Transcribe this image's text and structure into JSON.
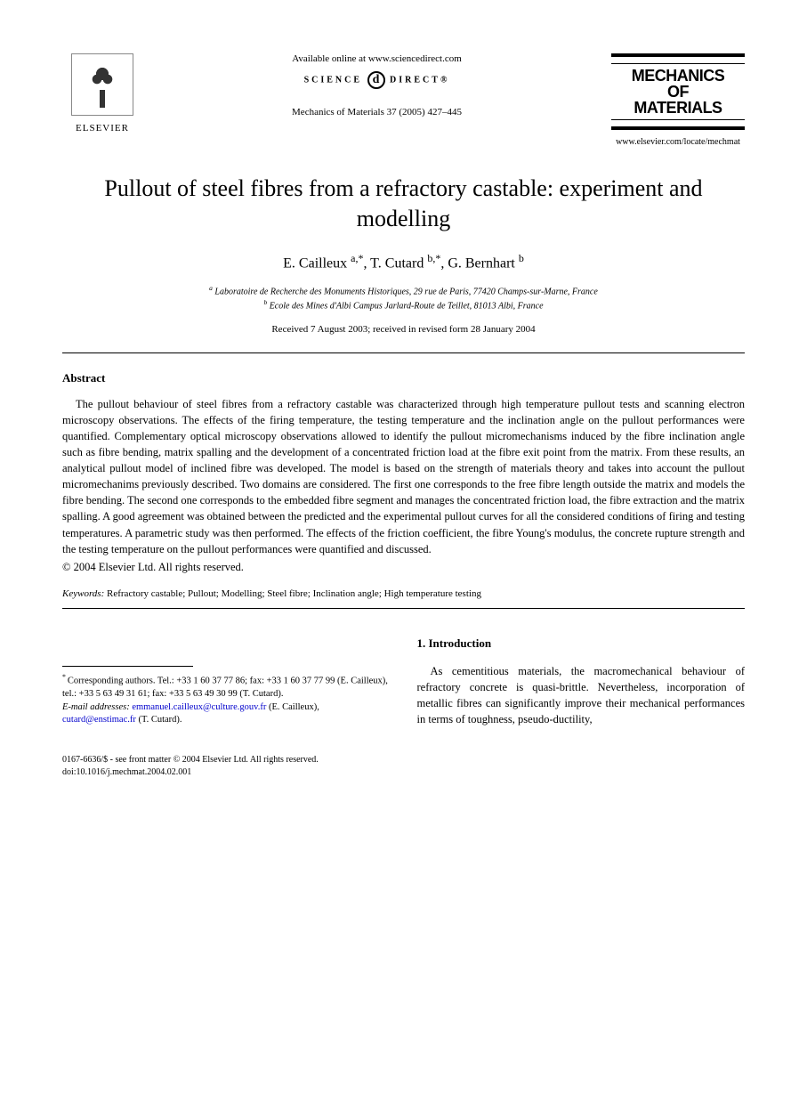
{
  "header": {
    "elsevier_label": "ELSEVIER",
    "available_online": "Available online at www.sciencedirect.com",
    "science_direct_left": "SCIENCE",
    "science_direct_right": "DIRECT®",
    "journal_ref": "Mechanics of Materials 37 (2005) 427–445",
    "journal_name_line1": "MECHANICS",
    "journal_name_line2": "OF",
    "journal_name_line3": "MATERIALS",
    "journal_url": "www.elsevier.com/locate/mechmat"
  },
  "title": "Pullout of steel fibres from a refractory castable: experiment and modelling",
  "authors": "E. Cailleux ",
  "author_a_sup": "a,*",
  "author_2": ", T. Cutard ",
  "author_b_sup": "b,*",
  "author_3": ", G. Bernhart ",
  "author_3_sup": "b",
  "affiliations": {
    "a": "Laboratoire de Recherche des Monuments Historiques, 29 rue de Paris, 77420 Champs-sur-Marne, France",
    "b": "Ecole des Mines d'Albi Campus Jarlard-Route de Teillet, 81013 Albi, France"
  },
  "dates": "Received 7 August 2003; received in revised form 28 January 2004",
  "abstract_heading": "Abstract",
  "abstract_text": "The pullout behaviour of steel fibres from a refractory castable was characterized through high temperature pullout tests and scanning electron microscopy observations. The effects of the firing temperature, the testing temperature and the inclination angle on the pullout performances were quantified. Complementary optical microscopy observations allowed to identify the pullout micromechanisms induced by the fibre inclination angle such as fibre bending, matrix spalling and the development of a concentrated friction load at the fibre exit point from the matrix. From these results, an analytical pullout model of inclined fibre was developed. The model is based on the strength of materials theory and takes into account the pullout micromechanims previously described. Two domains are considered. The first one corresponds to the free fibre length outside the matrix and models the fibre bending. The second one corresponds to the embedded fibre segment and manages the concentrated friction load, the fibre extraction and the matrix spalling. A good agreement was obtained between the predicted and the experimental pullout curves for all the considered conditions of firing and testing temperatures. A parametric study was then performed. The effects of the friction coefficient, the fibre Young's modulus, the concrete rupture strength and the testing temperature on the pullout performances were quantified and discussed.",
  "copyright": "© 2004 Elsevier Ltd. All rights reserved.",
  "keywords_label": "Keywords:",
  "keywords_text": " Refractory castable; Pullout; Modelling; Steel fibre; Inclination angle; High temperature testing",
  "section1_heading": "1. Introduction",
  "intro_text": "As cementitious materials, the macromechanical behaviour of refractory concrete is quasi-brittle. Nevertheless, incorporation of metallic fibres can significantly improve their mechanical performances in terms of toughness, pseudo-ductility,",
  "footnote_corr_label": "* ",
  "footnote_corr": "Corresponding authors. Tel.: +33 1 60 37 77 86; fax: +33 1 60 37 77 99 (E. Cailleux), tel.: +33 5 63 49 31 61; fax: +33 5 63 49 30 99 (T. Cutard).",
  "footnote_email_label": "E-mail addresses:",
  "email1": "emmanuel.cailleux@culture.gouv.fr",
  "email1_name": " (E. Cailleux), ",
  "email2": "cutard@enstimac.fr",
  "email2_name": " (T. Cutard).",
  "footer_line1": "0167-6636/$ - see front matter © 2004 Elsevier Ltd. All rights reserved.",
  "footer_line2": "doi:10.1016/j.mechmat.2004.02.001"
}
